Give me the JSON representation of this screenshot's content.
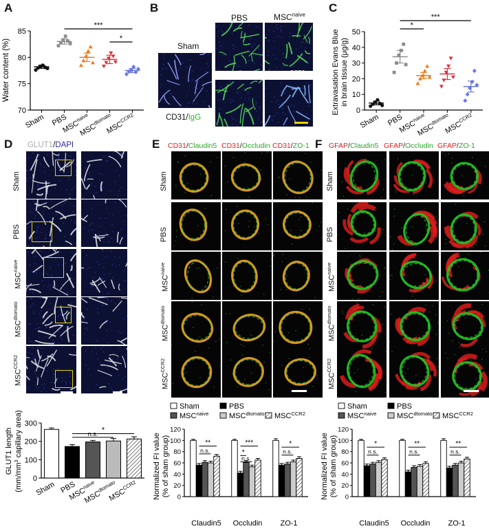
{
  "panels": {
    "A": "A",
    "B": "B",
    "C": "C",
    "D": "D",
    "E": "E",
    "F": "F"
  },
  "colors": {
    "sham": "#111111",
    "pbs": "#8c8c8c",
    "naive": "#f07a1a",
    "dtomato": "#e0303a",
    "ccr2": "#6a78e0",
    "cd31": "#e02020",
    "green": "#2fd02f",
    "dapi": "#2a2aa0",
    "scale_yellow": "#e6d400"
  },
  "groups": {
    "sham": "Sham",
    "pbs": "PBS",
    "msc": "MSC",
    "naive_sup": "naive",
    "dtomato_sup": "dtomato",
    "ccr2_sup": "CCR2"
  },
  "panelB": {
    "sham": "Sham",
    "pbs": "PBS",
    "stain_cd31": "CD31",
    "stain_slash": "/",
    "stain_igg": "IgG"
  },
  "panelD": {
    "stain_glut1": "GLUT1",
    "stain_slash": "/",
    "stain_dapi": "DAPI"
  },
  "panelE": {
    "headers": [
      {
        "a": "CD31",
        "b": "Claudin5"
      },
      {
        "a": "CD31",
        "b": "Occludin"
      },
      {
        "a": "CD31",
        "b": "ZO-1"
      }
    ]
  },
  "panelF": {
    "headers": [
      {
        "a": "GFAP",
        "b": "Claudin5"
      },
      {
        "a": "GFAP",
        "b": "Occludin"
      },
      {
        "a": "GFAP",
        "b": "ZO-1"
      }
    ]
  },
  "slash": "/",
  "chart_data": [
    {
      "id": "A",
      "type": "scatter",
      "ylabel": "Water content (%)",
      "ylim": [
        70,
        85
      ],
      "yticks": [
        70,
        75,
        80,
        85
      ],
      "categories": [
        "Sham",
        "PBS",
        "MSC naive",
        "MSC dtomato",
        "MSC CCR2"
      ],
      "means": [
        78.2,
        83.0,
        80.0,
        79.6,
        77.5
      ],
      "sem": [
        0.3,
        0.5,
        0.8,
        0.8,
        0.4
      ],
      "points": [
        [
          77.6,
          78.0,
          78.3,
          78.5,
          78.1,
          77.9
        ],
        [
          82.2,
          82.8,
          83.3,
          84.0,
          83.1,
          82.6
        ],
        [
          78.5,
          79.4,
          80.2,
          81.2,
          82.0,
          79.0
        ],
        [
          78.3,
          79.0,
          79.8,
          80.8,
          80.2,
          79.1
        ],
        [
          76.8,
          77.3,
          77.6,
          78.2,
          77.2,
          77.8
        ]
      ],
      "significance": [
        {
          "from": 1,
          "to": 4,
          "label": "***"
        },
        {
          "from": 3,
          "to": 4,
          "label": "*"
        }
      ]
    },
    {
      "id": "C",
      "type": "scatter",
      "ylabel_line1": "Extravasation Evans Blue",
      "ylabel_line2": "in brain tissue (μg/g)",
      "ylim": [
        0,
        50
      ],
      "yticks": [
        0,
        10,
        20,
        30,
        40,
        50
      ],
      "categories": [
        "Sham",
        "PBS",
        "MSC naive",
        "MSC dtomato",
        "MSC CCR2"
      ],
      "means": [
        4.5,
        34,
        22,
        23,
        15
      ],
      "sem": [
        1.2,
        4,
        2,
        3.5,
        3.5
      ],
      "points": [
        [
          2.5,
          3.8,
          5.0,
          6.5,
          4.2,
          3.0
        ],
        [
          24,
          30,
          35,
          38,
          42,
          29
        ],
        [
          17,
          20,
          22,
          25,
          28,
          21
        ],
        [
          15,
          19,
          24,
          28,
          33,
          21
        ],
        [
          6,
          10,
          14,
          18,
          25,
          16
        ]
      ],
      "significance": [
        {
          "from": 1,
          "to": 4,
          "label": "***"
        },
        {
          "from": 1,
          "to": 2,
          "label": "*"
        }
      ]
    },
    {
      "id": "D",
      "type": "bar",
      "ylabel_line1": "GLUT1 length",
      "ylabel_line2": "(mm/mm",
      "ylabel_sup": "3",
      "ylabel_line2b": " capillary area)",
      "ylim": [
        0,
        300
      ],
      "yticks": [
        0,
        100,
        200,
        300
      ],
      "categories": [
        "Sham",
        "PBS",
        "MSC naive",
        "MSC dtomato",
        "MSC CCR2"
      ],
      "values": [
        265,
        172,
        197,
        202,
        213
      ],
      "sem": [
        8,
        10,
        8,
        14,
        12
      ],
      "significance": [
        {
          "from": 1,
          "to": 4,
          "label": "*"
        },
        {
          "from": 1,
          "to": 3,
          "label": "n.s."
        }
      ]
    },
    {
      "id": "E",
      "type": "bar",
      "ylabel_line1": "Normalized FI value",
      "ylabel_line2": "(% of sham group)",
      "ylim": [
        0,
        120
      ],
      "yticks": [
        0,
        20,
        40,
        60,
        80,
        100,
        120
      ],
      "categories": [
        "Claudin5",
        "Occludin",
        "ZO-1"
      ],
      "series": [
        {
          "name": "Sham",
          "values": [
            100,
            100,
            100
          ],
          "sem": [
            2,
            2,
            3
          ]
        },
        {
          "name": "PBS",
          "values": [
            56,
            42,
            56
          ],
          "sem": [
            3,
            3,
            3
          ]
        },
        {
          "name": "MSC naive",
          "values": [
            61,
            61,
            58
          ],
          "sem": [
            3,
            3,
            3
          ]
        },
        {
          "name": "MSC dtomato",
          "values": [
            60,
            53,
            62
          ],
          "sem": [
            3,
            3,
            3
          ]
        },
        {
          "name": "MSC CCR2",
          "values": [
            72,
            65,
            68
          ],
          "sem": [
            3,
            3,
            3
          ]
        }
      ],
      "significance": [
        [
          {
            "label": "**",
            "from": 1,
            "to": 4,
            "y": 90
          },
          {
            "label": "n.s.",
            "from": 1,
            "to": 3,
            "y": 76
          }
        ],
        [
          {
            "label": "***",
            "from": 1,
            "to": 4,
            "y": 90
          },
          {
            "label": "*",
            "from": 1,
            "to": 2,
            "y": 73
          },
          {
            "label": "n.s.",
            "from": 1,
            "to": 3,
            "y": 62
          }
        ],
        [
          {
            "label": "*",
            "from": 1,
            "to": 4,
            "y": 88
          },
          {
            "label": "n.s.",
            "from": 1,
            "to": 3,
            "y": 74
          }
        ]
      ]
    },
    {
      "id": "F",
      "type": "bar",
      "ylabel_line1": "Normalized FI value",
      "ylabel_line2": "(% of sham group)",
      "ylim": [
        0,
        120
      ],
      "yticks": [
        0,
        20,
        40,
        60,
        80,
        100,
        120
      ],
      "categories": [
        "Claudin5",
        "Occludin",
        "ZO-1"
      ],
      "series": [
        {
          "name": "Sham",
          "values": [
            100,
            100,
            100
          ],
          "sem": [
            2,
            2,
            3
          ]
        },
        {
          "name": "PBS",
          "values": [
            55,
            44,
            51
          ],
          "sem": [
            3,
            3,
            3
          ]
        },
        {
          "name": "MSC naive",
          "values": [
            58,
            52,
            56
          ],
          "sem": [
            3,
            3,
            3
          ]
        },
        {
          "name": "MSC dtomato",
          "values": [
            61,
            54,
            60
          ],
          "sem": [
            3,
            3,
            3
          ]
        },
        {
          "name": "MSC CCR2",
          "values": [
            66,
            59,
            67
          ],
          "sem": [
            3,
            3,
            3
          ]
        }
      ],
      "significance": [
        [
          {
            "label": "*",
            "from": 1,
            "to": 4,
            "y": 88
          },
          {
            "label": "n.s.",
            "from": 1,
            "to": 3,
            "y": 74
          }
        ],
        [
          {
            "label": "**",
            "from": 1,
            "to": 4,
            "y": 88
          },
          {
            "label": "n.s.",
            "from": 1,
            "to": 3,
            "y": 74
          }
        ],
        [
          {
            "label": "**",
            "from": 1,
            "to": 4,
            "y": 88
          },
          {
            "label": "n.s.",
            "from": 1,
            "to": 3,
            "y": 74
          }
        ]
      ]
    }
  ]
}
